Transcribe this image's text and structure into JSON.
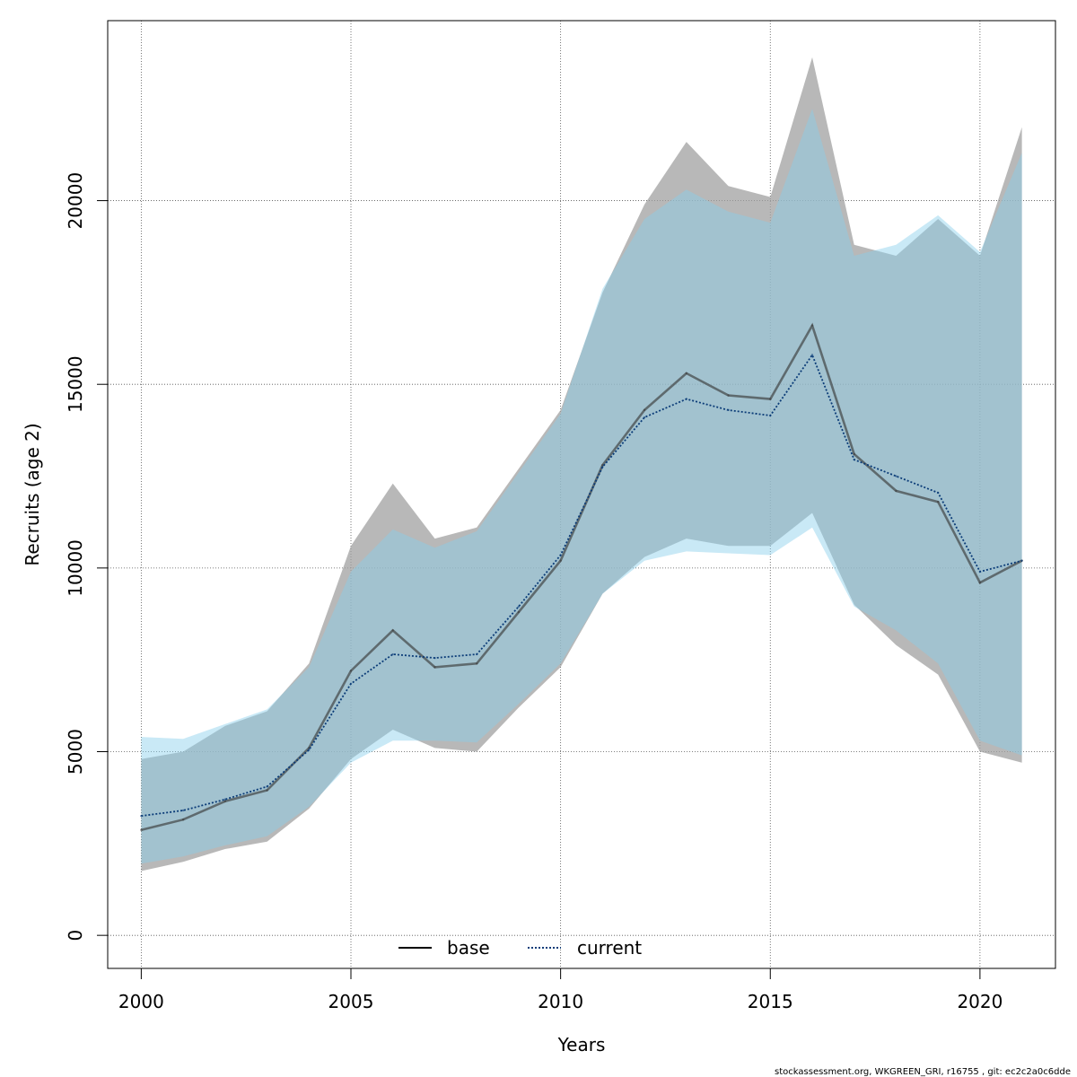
{
  "chart_data": {
    "type": "line",
    "xlabel": "Years",
    "ylabel": "Recruits (age 2)",
    "xlim": [
      1999.2,
      2021.8
    ],
    "ylim": [
      -900,
      24900
    ],
    "x_ticks": [
      2000,
      2005,
      2010,
      2015,
      2020
    ],
    "y_ticks": [
      0,
      5000,
      10000,
      15000,
      20000
    ],
    "grid": true,
    "legend_position": "bottom-center",
    "x": [
      2000,
      2001,
      2002,
      2003,
      2004,
      2005,
      2006,
      2007,
      2008,
      2009,
      2010,
      2011,
      2012,
      2013,
      2014,
      2015,
      2016,
      2017,
      2018,
      2019,
      2020,
      2021
    ],
    "series": [
      {
        "name": "base",
        "color": "#3a3a3a",
        "band_color": "#a0a0a0",
        "line_style": "solid",
        "values": [
          2870,
          3150,
          3650,
          3950,
          5100,
          7200,
          8300,
          7300,
          7400,
          8800,
          10200,
          12800,
          14300,
          15300,
          14700,
          14600,
          16600,
          13100,
          12100,
          11800,
          9600,
          10200
        ],
        "lower": [
          1750,
          2000,
          2350,
          2550,
          3450,
          4800,
          5600,
          5100,
          5000,
          6200,
          7300,
          9300,
          10300,
          10800,
          10600,
          10600,
          11500,
          9000,
          7900,
          7100,
          5000,
          4700
        ],
        "upper": [
          4800,
          5000,
          5700,
          6100,
          7400,
          10600,
          12300,
          10800,
          11100,
          12700,
          14300,
          17500,
          19900,
          21600,
          20400,
          20100,
          23900,
          18800,
          18500,
          19500,
          18500,
          22000
        ]
      },
      {
        "name": "current",
        "color": "#0b3c78",
        "band_color": "#87ceeb",
        "line_style": "dotted",
        "values": [
          3250,
          3400,
          3700,
          4050,
          5050,
          6850,
          7650,
          7550,
          7650,
          8950,
          10350,
          12750,
          14100,
          14600,
          14300,
          14150,
          15800,
          12950,
          12500,
          12050,
          9900,
          10200
        ],
        "lower": [
          1950,
          2150,
          2450,
          2700,
          3500,
          4700,
          5300,
          5300,
          5250,
          6300,
          7400,
          9300,
          10200,
          10450,
          10400,
          10350,
          11100,
          8950,
          8300,
          7400,
          5300,
          4900
        ],
        "upper": [
          5400,
          5350,
          5750,
          6150,
          7300,
          9900,
          11050,
          10550,
          11000,
          12600,
          14200,
          17600,
          19500,
          20300,
          19700,
          19400,
          22500,
          18500,
          18800,
          19600,
          18600,
          21300
        ]
      }
    ]
  },
  "footer": "stockassessment.org, WKGREEN_GRI, r16755 , git: ec2c2a0c6dde"
}
